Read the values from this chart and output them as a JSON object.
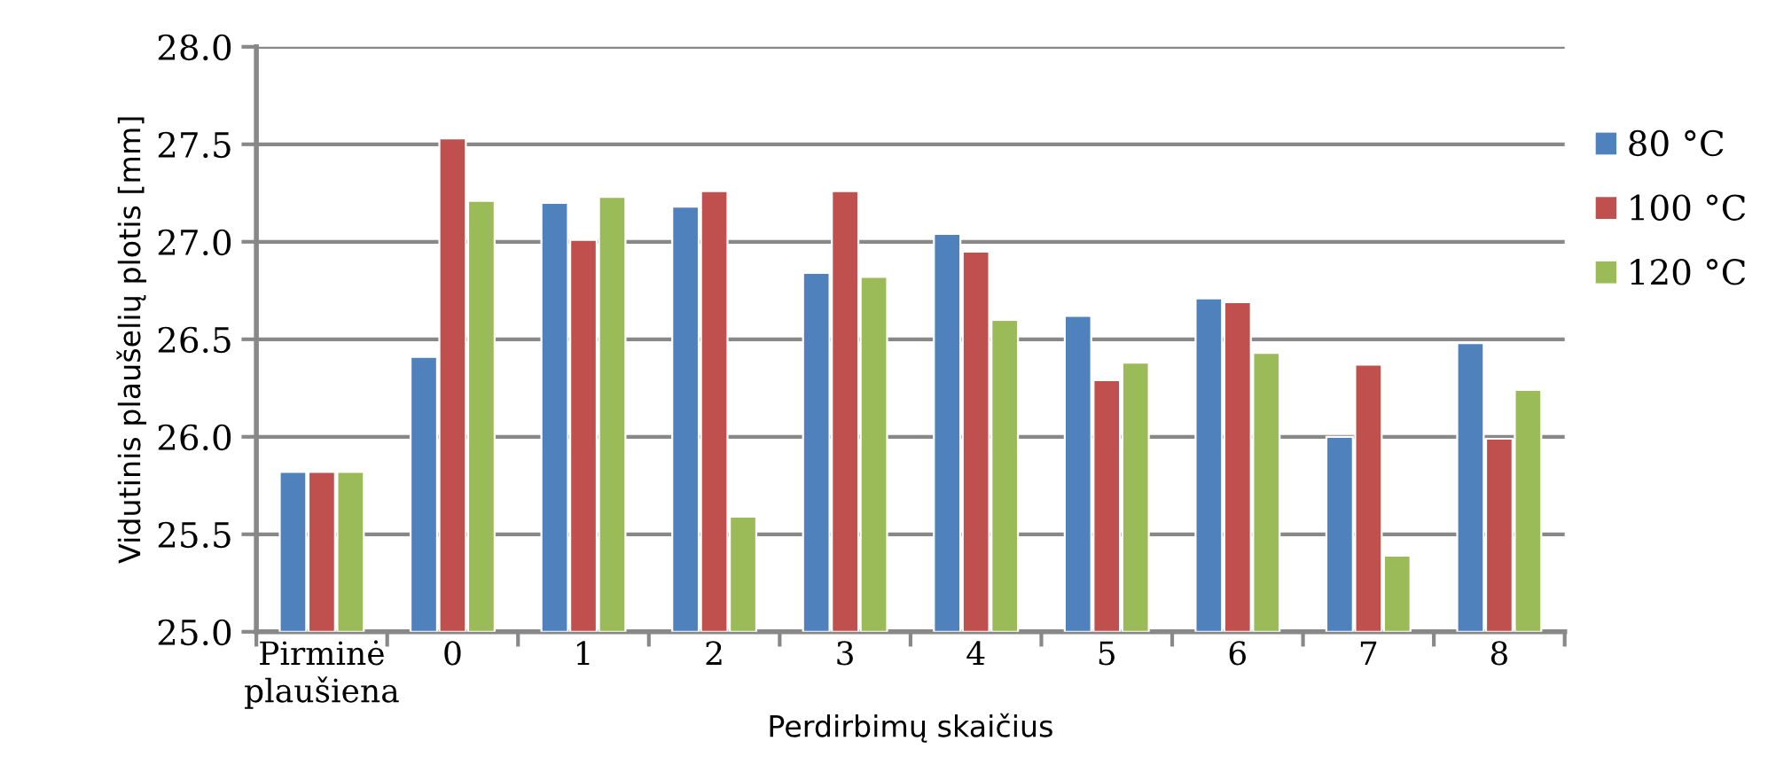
{
  "chart_data": {
    "type": "bar",
    "xlabel": "Perdirbimų skaičius",
    "ylabel": "Vidutinis plaušelių plotis [mm]",
    "categories": [
      "Pirminė\nplaušiena",
      "0",
      "1",
      "2",
      "3",
      "4",
      "5",
      "6",
      "7",
      "8"
    ],
    "series": [
      {
        "name": "80 °C",
        "color": "#4f81bd",
        "values": [
          25.82,
          26.41,
          27.2,
          27.18,
          26.84,
          27.04,
          26.62,
          26.71,
          26.0,
          26.48
        ]
      },
      {
        "name": "100 °C",
        "color": "#c0504d",
        "values": [
          25.82,
          27.53,
          27.01,
          27.26,
          27.26,
          26.95,
          26.29,
          26.69,
          26.37,
          25.99
        ]
      },
      {
        "name": "120 °C",
        "color": "#9bbb59",
        "values": [
          25.82,
          27.21,
          27.23,
          25.59,
          26.82,
          26.6,
          26.38,
          26.43,
          25.39,
          26.24
        ]
      }
    ],
    "ylim": [
      25.0,
      28.0
    ],
    "yticks": [
      {
        "value": 25.0,
        "label": "25.0"
      },
      {
        "value": 25.5,
        "label": "25.5"
      },
      {
        "value": 26.0,
        "label": "26.0"
      },
      {
        "value": 26.5,
        "label": "26.5"
      },
      {
        "value": 27.0,
        "label": "27.0"
      },
      {
        "value": 27.5,
        "label": "27.5"
      },
      {
        "value": 28.0,
        "label": "28.0"
      }
    ],
    "grid": "y",
    "legend": "right"
  }
}
